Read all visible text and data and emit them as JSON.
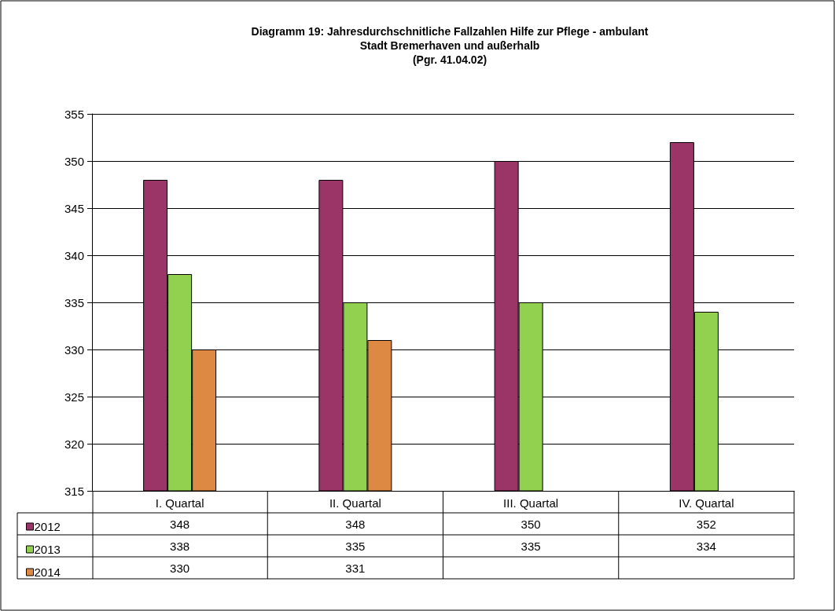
{
  "chart_data": {
    "type": "bar",
    "title": "Diagramm 19: Jahresdurchschnitliche Fallzahlen Hilfe zur Pflege - ambulant\nStadt Bremerhaven und außerhalb\n(Pgr. 41.04.02)",
    "categories": [
      "I. Quartal",
      "II. Quartal",
      "III. Quartal",
      "IV. Quartal"
    ],
    "series": [
      {
        "name": "2012",
        "color": "#9b3467",
        "values": [
          348,
          348,
          350,
          352
        ]
      },
      {
        "name": "2013",
        "color": "#92d050",
        "values": [
          338,
          335,
          335,
          334
        ]
      },
      {
        "name": "2014",
        "color": "#dd8843",
        "values": [
          330,
          331,
          null,
          null
        ]
      }
    ],
    "ylim": [
      315,
      355
    ],
    "yticks": [
      315,
      320,
      325,
      330,
      335,
      340,
      345,
      350,
      355
    ],
    "grid": "y",
    "legend": "bottom left",
    "data_labels": true
  }
}
